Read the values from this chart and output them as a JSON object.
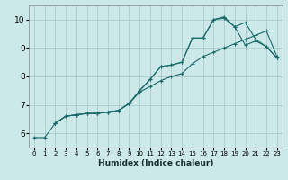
{
  "title": "",
  "xlabel": "Humidex (Indice chaleur)",
  "ylabel": "",
  "bg_color": "#cce8e8",
  "grid_color": "#aacccc",
  "line_color": "#1a6b6b",
  "xlim": [
    -0.5,
    23.5
  ],
  "ylim": [
    5.5,
    10.5
  ],
  "xticks": [
    0,
    1,
    2,
    3,
    4,
    5,
    6,
    7,
    8,
    9,
    10,
    11,
    12,
    13,
    14,
    15,
    16,
    17,
    18,
    19,
    20,
    21,
    22,
    23
  ],
  "yticks": [
    6,
    7,
    8,
    9,
    10
  ],
  "series1_x": [
    0,
    1,
    2,
    3,
    4,
    5,
    6,
    7,
    8,
    9,
    10,
    11,
    12,
    13,
    14,
    15,
    16,
    17,
    18,
    19,
    20,
    21,
    22,
    23
  ],
  "series1_y": [
    5.85,
    5.85,
    6.35,
    6.6,
    6.65,
    6.7,
    6.7,
    6.75,
    6.8,
    7.05,
    7.45,
    7.65,
    7.85,
    8.0,
    8.1,
    8.45,
    8.7,
    8.85,
    9.0,
    9.15,
    9.3,
    9.45,
    9.6,
    8.7
  ],
  "series2_x": [
    2,
    3,
    4,
    5,
    6,
    7,
    8,
    9,
    10,
    11,
    12,
    13,
    14,
    15,
    16,
    17,
    18,
    19,
    20,
    21,
    22,
    23
  ],
  "series2_y": [
    6.35,
    6.6,
    6.65,
    6.7,
    6.7,
    6.75,
    6.8,
    7.05,
    7.5,
    7.9,
    8.35,
    8.4,
    8.5,
    9.35,
    9.35,
    10.0,
    10.05,
    9.75,
    9.1,
    9.25,
    9.05,
    8.65
  ],
  "series3_x": [
    2,
    3,
    4,
    5,
    6,
    7,
    8,
    9,
    10,
    11,
    12,
    13,
    14,
    15,
    16,
    17,
    18,
    19,
    20,
    21,
    22,
    23
  ],
  "series3_y": [
    6.35,
    6.6,
    6.65,
    6.7,
    6.7,
    6.75,
    6.8,
    7.05,
    7.5,
    7.9,
    8.35,
    8.4,
    8.5,
    9.35,
    9.35,
    10.0,
    10.1,
    9.75,
    9.9,
    9.3,
    9.05,
    8.65
  ],
  "xlabel_fontsize": 6.5,
  "xtick_fontsize": 5.0,
  "ytick_fontsize": 6.5
}
